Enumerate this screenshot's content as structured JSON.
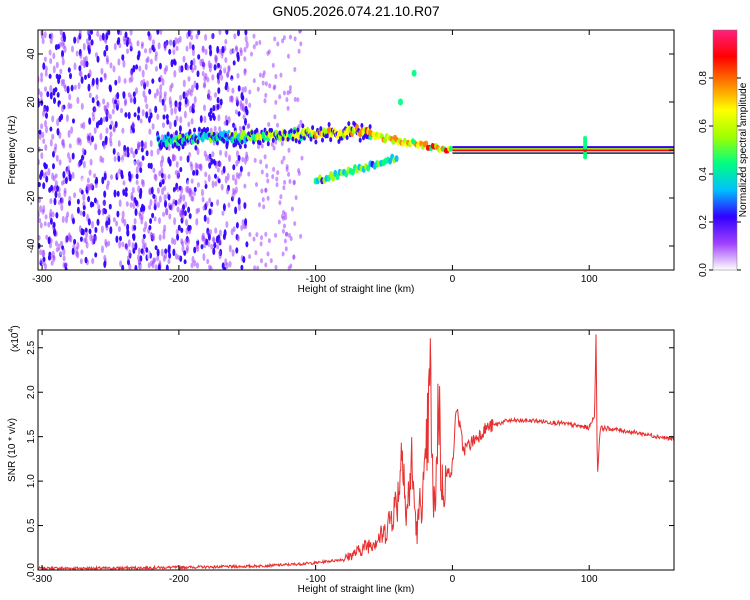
{
  "title": "GN05.2026.074.21.10.R07",
  "chart_data": [
    {
      "type": "heatmap",
      "name": "spectrogram",
      "xlabel": "Height of straight line (km)",
      "ylabel": "Frequency (Hz)",
      "xlim": [
        -303,
        162
      ],
      "ylim": [
        -50,
        50
      ],
      "x_ticks": [
        -300,
        -200,
        -100,
        0,
        100
      ],
      "x_tick_labels": [
        "-300",
        "-200",
        "-100",
        "0",
        "100"
      ],
      "y_ticks": [
        -40,
        -20,
        0,
        20,
        40
      ],
      "y_tick_labels": [
        "-40",
        "-20",
        "0",
        "20",
        "40"
      ],
      "colorbar": {
        "label": "Normalized spectral amplitude",
        "range": [
          0,
          1
        ],
        "ticks": [
          0.0,
          0.2,
          0.4,
          0.6,
          0.8
        ],
        "tick_labels": [
          "0.0",
          "0.2",
          "0.4",
          "0.6",
          "0.8"
        ],
        "colors": [
          "#ffffff",
          "#a040ff",
          "#3000ff",
          "#00c0ff",
          "#00ff80",
          "#a0ff00",
          "#ffff00",
          "#ff8000",
          "#ff0000",
          "#ff2080"
        ]
      },
      "features": {
        "noise_region_x": [
          -303,
          -150
        ],
        "sparse_noise_x": [
          -150,
          -110
        ],
        "main_track": {
          "x": [
            -215,
            -60
          ],
          "freq": [
            4,
            8
          ]
        },
        "lower_branch": {
          "x": [
            -100,
            -40
          ],
          "freq": [
            -13,
            -3
          ]
        },
        "upper_dots": [
          {
            "x": -38,
            "freq": 20
          },
          {
            "x": -28,
            "freq": 32
          }
        ],
        "steady_line": {
          "x": [
            0,
            162
          ],
          "freq": 0
        },
        "spike_x": 97
      }
    },
    {
      "type": "line",
      "name": "snr",
      "xlabel": "Height of straight line (km)",
      "ylabel": "SNR (10 * v/v)",
      "y_scale_label": "(x10",
      "y_scale_exp": "4",
      "y_scale_suffix": ")",
      "xlim": [
        -303,
        162
      ],
      "ylim": [
        0,
        2.7
      ],
      "x_ticks": [
        -300,
        -200,
        -100,
        0,
        100
      ],
      "x_tick_labels": [
        "-300",
        "-200",
        "-100",
        "0",
        "100"
      ],
      "y_ticks": [
        0,
        0.5,
        1.0,
        1.5,
        2.0,
        2.5
      ],
      "y_tick_labels": [
        "0.0",
        "0.5",
        "1.0",
        "1.5",
        "2.0",
        "2.5"
      ],
      "color": "#e83030",
      "points": [
        [
          -303,
          0.02
        ],
        [
          -250,
          0.02
        ],
        [
          -200,
          0.03
        ],
        [
          -150,
          0.04
        ],
        [
          -120,
          0.06
        ],
        [
          -100,
          0.08
        ],
        [
          -80,
          0.12
        ],
        [
          -70,
          0.2
        ],
        [
          -60,
          0.3
        ],
        [
          -50,
          0.4
        ],
        [
          -45,
          0.6
        ],
        [
          -40,
          0.8
        ],
        [
          -36,
          1.55
        ],
        [
          -34,
          0.5
        ],
        [
          -30,
          1.2
        ],
        [
          -26,
          0.4
        ],
        [
          -24,
          0.7
        ],
        [
          -20,
          1.0
        ],
        [
          -16,
          2.15
        ],
        [
          -14,
          0.6
        ],
        [
          -12,
          1.0
        ],
        [
          -10,
          2.05
        ],
        [
          -8,
          0.9
        ],
        [
          -5,
          1.05
        ],
        [
          0,
          1.15
        ],
        [
          3,
          1.85
        ],
        [
          8,
          1.35
        ],
        [
          15,
          1.45
        ],
        [
          25,
          1.6
        ],
        [
          40,
          1.68
        ],
        [
          60,
          1.68
        ],
        [
          80,
          1.65
        ],
        [
          100,
          1.6
        ],
        [
          104,
          1.75
        ],
        [
          105,
          2.65
        ],
        [
          106,
          1.05
        ],
        [
          108,
          1.6
        ],
        [
          120,
          1.58
        ],
        [
          140,
          1.53
        ],
        [
          162,
          1.47
        ]
      ]
    }
  ]
}
